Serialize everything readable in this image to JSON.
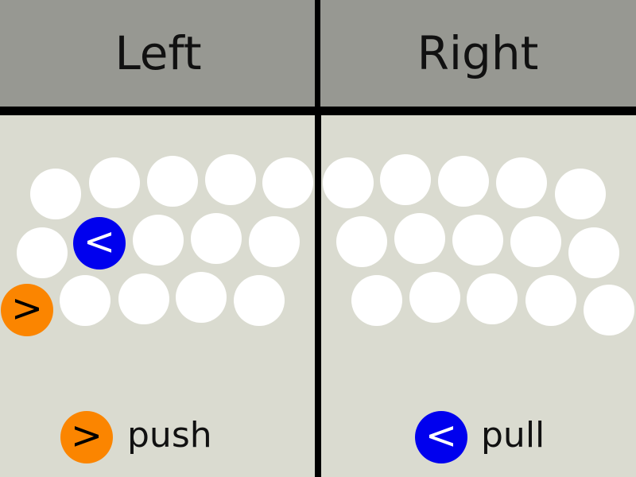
{
  "header": {
    "left_label": "Left",
    "right_label": "Right"
  },
  "tokens": {
    "pull_symbol": "<",
    "push_symbol": ">"
  },
  "legend": {
    "push": {
      "symbol": ">",
      "label": "push"
    },
    "pull": {
      "symbol": "<",
      "label": "pull"
    }
  },
  "colors": {
    "background": "#dadbd0",
    "header_background": "#979892",
    "divider": "#000000",
    "ball": "#ffffff",
    "push": "#fb8500",
    "pull": "#0000ee"
  }
}
